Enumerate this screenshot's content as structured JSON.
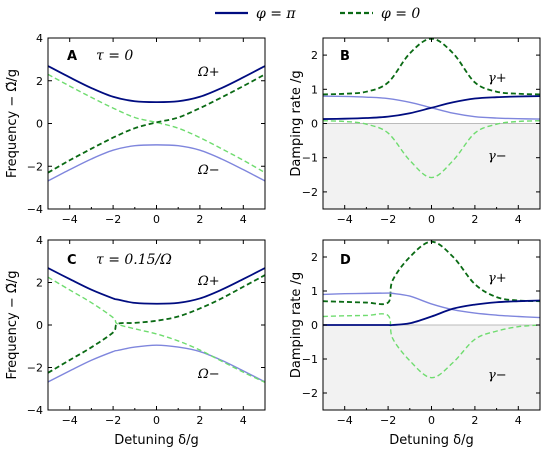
{
  "colors": {
    "pi_solid_dark": "#000c80",
    "pi_solid_light": "#7f86dd",
    "zero_dashed_dark": "#0a6a14",
    "zero_dashed_light": "#6fdc6f",
    "shade": "#f2f2f2",
    "zero_line": "#bbbbbb"
  },
  "legend": {
    "items": [
      {
        "label": "φ = π",
        "style": "solid",
        "color": "#000c80"
      },
      {
        "label": "φ = 0",
        "style": "dashed",
        "color": "#0a6a14"
      }
    ]
  },
  "chart_data": [
    {
      "panel": "A",
      "type": "line",
      "annotation": "τ = 0",
      "ylabel": "Frequency − Ω̃/g",
      "xlabel": "",
      "xlim": [
        -5,
        5
      ],
      "ylim": [
        -4,
        4
      ],
      "xticks": [
        "−4",
        "−2",
        "0",
        "2",
        "4"
      ],
      "yticks": [
        "−4",
        "−2",
        "0",
        "2",
        "4"
      ],
      "curve_labels": [
        "Ω+",
        "Ω−"
      ],
      "x": [
        -5,
        -4,
        -3,
        -2,
        -1,
        0,
        1,
        2,
        3,
        4,
        5
      ],
      "series": [
        {
          "style": "solid",
          "shade": "dark",
          "values": [
            2.69,
            2.16,
            1.66,
            1.25,
            1.04,
            1.0,
            1.04,
            1.25,
            1.66,
            2.16,
            2.69
          ]
        },
        {
          "style": "solid",
          "shade": "light",
          "values": [
            -2.69,
            -2.16,
            -1.66,
            -1.25,
            -1.04,
            -1.0,
            -1.04,
            -1.25,
            -1.66,
            -2.16,
            -2.69
          ]
        },
        {
          "style": "dashed",
          "shade": "light",
          "values": [
            2.3,
            1.75,
            1.22,
            0.72,
            0.28,
            0.05,
            -0.22,
            -0.66,
            -1.18,
            -1.72,
            -2.3
          ]
        },
        {
          "style": "dashed",
          "shade": "dark",
          "values": [
            -2.3,
            -1.72,
            -1.18,
            -0.66,
            -0.22,
            0.05,
            0.28,
            0.72,
            1.22,
            1.75,
            2.3
          ]
        }
      ]
    },
    {
      "panel": "B",
      "type": "line",
      "ylabel": "Damping rate /g",
      "xlabel": "",
      "xlim": [
        -5,
        5
      ],
      "ylim": [
        -2.5,
        2.5
      ],
      "xticks": [
        "−4",
        "−2",
        "0",
        "2",
        "4"
      ],
      "yticks": [
        "−2",
        "−1",
        "0",
        "1",
        "2"
      ],
      "shade_below_zero": true,
      "curve_labels": [
        "γ+",
        "γ−"
      ],
      "x": [
        -5,
        -4,
        -3,
        -2,
        -1,
        0,
        1,
        2,
        3,
        4,
        5
      ],
      "series": [
        {
          "style": "dashed",
          "shade": "dark",
          "values": [
            0.85,
            0.87,
            0.93,
            1.2,
            2.05,
            2.48,
            2.05,
            1.2,
            0.93,
            0.87,
            0.85
          ]
        },
        {
          "style": "dashed",
          "shade": "light",
          "values": [
            0.08,
            0.06,
            -0.02,
            -0.28,
            -1.08,
            -1.58,
            -1.08,
            -0.28,
            -0.02,
            0.06,
            0.08
          ]
        },
        {
          "style": "solid",
          "shade": "light",
          "values": [
            0.8,
            0.79,
            0.77,
            0.73,
            0.62,
            0.46,
            0.3,
            0.2,
            0.16,
            0.14,
            0.13
          ]
        },
        {
          "style": "solid",
          "shade": "dark",
          "values": [
            0.13,
            0.14,
            0.16,
            0.2,
            0.3,
            0.46,
            0.62,
            0.73,
            0.77,
            0.79,
            0.8
          ]
        }
      ]
    },
    {
      "panel": "C",
      "type": "line",
      "annotation": "τ = 0.15/Ω",
      "ylabel": "Frequency − Ω̃/g",
      "xlabel": "Detuning δ/g",
      "xlim": [
        -5,
        5
      ],
      "ylim": [
        -4,
        4
      ],
      "xticks": [
        "−4",
        "−2",
        "0",
        "2",
        "4"
      ],
      "yticks": [
        "−4",
        "−2",
        "0",
        "2",
        "4"
      ],
      "curve_labels": [
        "Ω+",
        "Ω−"
      ],
      "x": [
        -5,
        -4,
        -3,
        -2,
        -1.8,
        -1,
        0,
        1,
        2,
        3,
        4,
        5
      ],
      "series": [
        {
          "style": "solid",
          "shade": "dark",
          "values": [
            2.68,
            2.16,
            1.66,
            1.25,
            1.2,
            1.04,
            1.0,
            1.04,
            1.25,
            1.66,
            2.16,
            2.68
          ]
        },
        {
          "style": "solid",
          "shade": "light",
          "values": [
            -2.68,
            -2.16,
            -1.66,
            -1.25,
            -1.2,
            -1.04,
            -0.95,
            -1.04,
            -1.25,
            -1.66,
            -2.16,
            -2.68
          ]
        },
        {
          "style": "dashed",
          "shade": "light",
          "values": [
            2.25,
            1.65,
            1.05,
            0.35,
            0.05,
            -0.18,
            -0.42,
            -0.75,
            -1.18,
            -1.7,
            -2.22,
            -2.7
          ]
        },
        {
          "style": "dashed",
          "shade": "dark",
          "values": [
            -2.25,
            -1.65,
            -1.05,
            -0.35,
            0.05,
            0.1,
            0.2,
            0.4,
            0.78,
            1.25,
            1.8,
            2.35
          ]
        }
      ]
    },
    {
      "panel": "D",
      "type": "line",
      "ylabel": "Damping rate /g",
      "xlabel": "Detuning δ/g",
      "xlim": [
        -5,
        5
      ],
      "ylim": [
        -2.5,
        2.5
      ],
      "xticks": [
        "−4",
        "−2",
        "0",
        "2",
        "4"
      ],
      "yticks": [
        "−2",
        "−1",
        "0",
        "1",
        "2"
      ],
      "shade_below_zero": true,
      "curve_labels": [
        "γ+",
        "γ−"
      ],
      "x": [
        -5,
        -4,
        -3,
        -2,
        -1.8,
        -1,
        0,
        1,
        2,
        3,
        4,
        5
      ],
      "series": [
        {
          "style": "dashed",
          "shade": "dark",
          "values": [
            0.7,
            0.68,
            0.66,
            0.66,
            1.3,
            2.0,
            2.45,
            2.0,
            1.2,
            0.82,
            0.72,
            0.7
          ]
        },
        {
          "style": "dashed",
          "shade": "light",
          "values": [
            0.25,
            0.27,
            0.28,
            0.28,
            -0.38,
            -1.05,
            -1.55,
            -1.1,
            -0.42,
            -0.18,
            -0.05,
            0.0
          ]
        },
        {
          "style": "solid",
          "shade": "light",
          "values": [
            0.9,
            0.92,
            0.93,
            0.94,
            0.93,
            0.85,
            0.62,
            0.45,
            0.35,
            0.29,
            0.25,
            0.22
          ]
        },
        {
          "style": "solid",
          "shade": "dark",
          "values": [
            0.0,
            0.0,
            0.0,
            0.0,
            0.0,
            0.05,
            0.25,
            0.48,
            0.6,
            0.67,
            0.7,
            0.72
          ]
        }
      ]
    }
  ]
}
